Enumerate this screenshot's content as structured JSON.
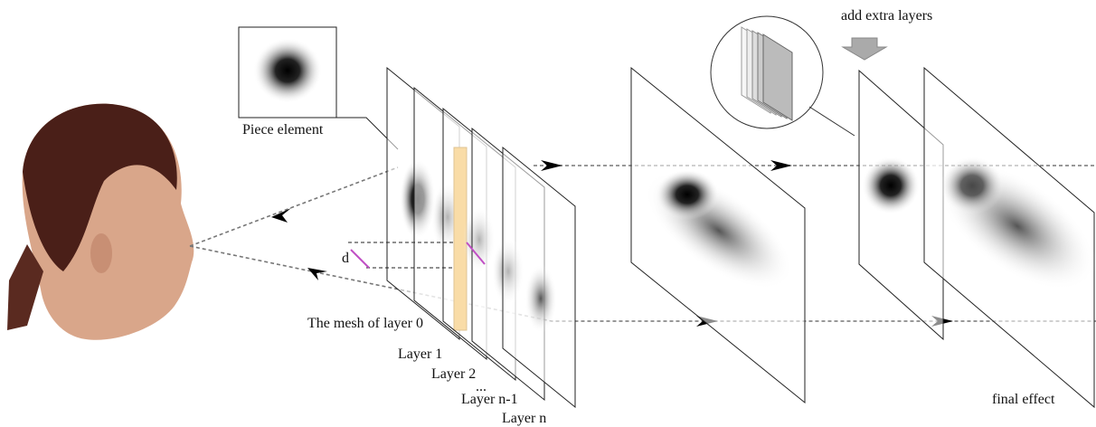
{
  "labels": {
    "add_layers": "add extra layers",
    "piece": "Piece element",
    "distance": "d",
    "mesh": "The mesh of layer 0",
    "layers": [
      "Layer 1",
      "Layer 2",
      "...",
      "Layer n-1",
      "Layer n"
    ],
    "final": "final effect"
  }
}
